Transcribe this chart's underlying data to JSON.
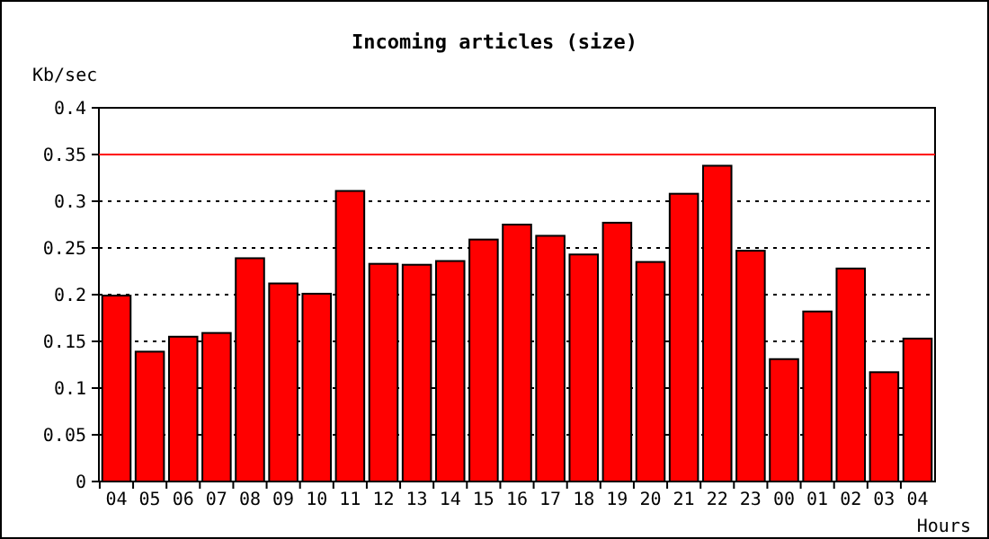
{
  "chart_data": {
    "type": "bar",
    "title": "Incoming articles (size)",
    "xlabel": "Hours",
    "ylabel": "Kb/sec",
    "categories": [
      "04",
      "05",
      "06",
      "07",
      "08",
      "09",
      "10",
      "11",
      "12",
      "13",
      "14",
      "15",
      "16",
      "17",
      "18",
      "19",
      "20",
      "21",
      "22",
      "23",
      "00",
      "01",
      "02",
      "03",
      "04"
    ],
    "values": [
      0.199,
      0.139,
      0.155,
      0.159,
      0.239,
      0.212,
      0.201,
      0.311,
      0.233,
      0.232,
      0.236,
      0.259,
      0.275,
      0.263,
      0.243,
      0.277,
      0.235,
      0.308,
      0.338,
      0.247,
      0.131,
      0.182,
      0.228,
      0.117,
      0.153
    ],
    "color": "#ff0000",
    "ylim": [
      0,
      0.4
    ],
    "yticks": [
      0,
      0.05,
      0.1,
      0.15,
      0.2,
      0.25,
      0.3,
      0.35,
      0.4
    ],
    "grid": "y",
    "ref_lines": [
      {
        "axis": "y",
        "value": 0.35,
        "color": "#ff0000"
      }
    ]
  }
}
